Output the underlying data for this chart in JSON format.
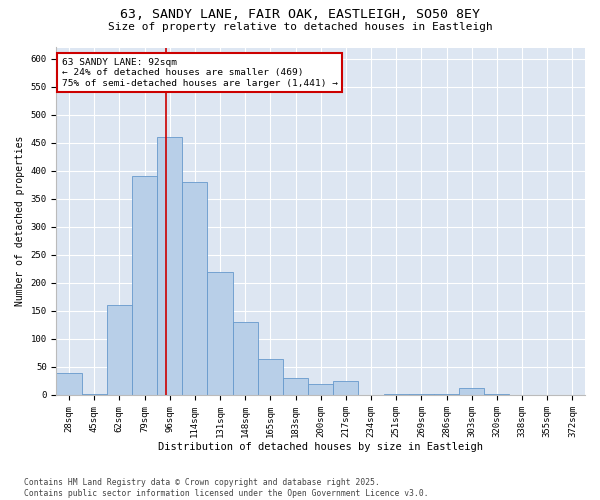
{
  "title": "63, SANDY LANE, FAIR OAK, EASTLEIGH, SO50 8EY",
  "subtitle": "Size of property relative to detached houses in Eastleigh",
  "xlabel": "Distribution of detached houses by size in Eastleigh",
  "ylabel": "Number of detached properties",
  "categories": [
    "28sqm",
    "45sqm",
    "62sqm",
    "79sqm",
    "96sqm",
    "114sqm",
    "131sqm",
    "148sqm",
    "165sqm",
    "183sqm",
    "200sqm",
    "217sqm",
    "234sqm",
    "251sqm",
    "269sqm",
    "286sqm",
    "303sqm",
    "320sqm",
    "338sqm",
    "355sqm",
    "372sqm"
  ],
  "values": [
    40,
    2,
    160,
    390,
    460,
    380,
    220,
    130,
    65,
    30,
    20,
    25,
    0,
    2,
    2,
    2,
    12,
    2,
    0,
    0,
    0
  ],
  "bar_color": "#b8cfe8",
  "bar_edge_color": "#6699cc",
  "bg_color": "#dde6f2",
  "grid_color": "#ffffff",
  "property_line_x": 3.85,
  "annotation_text": "63 SANDY LANE: 92sqm\n← 24% of detached houses are smaller (469)\n75% of semi-detached houses are larger (1,441) →",
  "annotation_box_color": "#cc0000",
  "footer": "Contains HM Land Registry data © Crown copyright and database right 2025.\nContains public sector information licensed under the Open Government Licence v3.0.",
  "ylim": [
    0,
    620
  ],
  "yticks": [
    0,
    50,
    100,
    150,
    200,
    250,
    300,
    350,
    400,
    450,
    500,
    550,
    600
  ],
  "title_fontsize": 9.5,
  "subtitle_fontsize": 8,
  "tick_fontsize": 6.5,
  "xlabel_fontsize": 7.5,
  "ylabel_fontsize": 7,
  "annot_fontsize": 6.8,
  "footer_fontsize": 5.8
}
